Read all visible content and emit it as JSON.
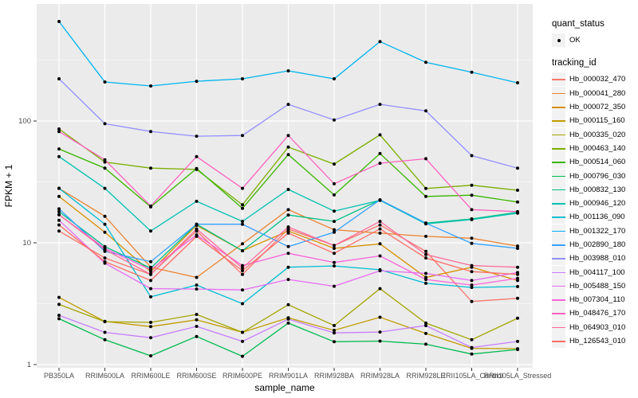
{
  "legend": {
    "quant_status_title": "quant_status",
    "ok_label": "OK",
    "tracking_title": "tracking_id"
  },
  "chart_data": {
    "type": "line",
    "title": "",
    "xlabel": "sample_name",
    "ylabel": "FPKM + 1",
    "y_scale": "log10",
    "ylim": [
      1,
      850
    ],
    "grid": true,
    "legend_position": "right",
    "panel_background": "#EBEBEB",
    "gridline_color": "#FFFFFF",
    "marker_color": "#000000",
    "marker_legend_label": "OK",
    "y_major_ticks": [
      1,
      10,
      100
    ],
    "y_minor_gridlines": [
      3.162,
      31.62,
      316.2
    ],
    "categories": [
      "PB350LA",
      "RRIM600LA",
      "RRIM600LE",
      "RRIM600SE",
      "RRIM600PE",
      "RRIM901LA",
      "RRIM928BA",
      "RRIM928LA",
      "RRIM928LE",
      "RRII105LA_Control",
      "RRII105LA_Stressed"
    ],
    "series": [
      {
        "name": "Hb_000032_470",
        "color": "#F8766D",
        "values": [
          12.5,
          7.5,
          5.5,
          12.5,
          5.5,
          13,
          9.5,
          14,
          8.5,
          3.3,
          3.5
        ]
      },
      {
        "name": "Hb_000041_280",
        "color": "#EA8331",
        "values": [
          28,
          16.5,
          6.3,
          5.2,
          9.8,
          18.7,
          12.8,
          12,
          11.3,
          10.9,
          9.4
        ]
      },
      {
        "name": "Hb_000072_350",
        "color": "#D89000",
        "values": [
          24,
          12.2,
          5.8,
          13.9,
          8.6,
          12.5,
          9.0,
          9.8,
          5.2,
          6.3,
          4.9
        ]
      },
      {
        "name": "Hb_000115_160",
        "color": "#C09B00",
        "values": [
          3.56,
          2.26,
          2.05,
          2.33,
          1.84,
          2.42,
          1.91,
          2.45,
          1.8,
          1.36,
          1.35
        ]
      },
      {
        "name": "Hb_000335_020",
        "color": "#A3A500",
        "values": [
          3.12,
          2.25,
          2.22,
          2.58,
          1.84,
          3.1,
          2.09,
          4.2,
          2.19,
          1.6,
          2.4
        ]
      },
      {
        "name": "Hb_000463_140",
        "color": "#7CAE00",
        "values": [
          86,
          46,
          41,
          40,
          20.5,
          61,
          44.3,
          77,
          27.9,
          29.7,
          27
        ]
      },
      {
        "name": "Hb_000514_060",
        "color": "#39B600",
        "values": [
          59,
          41,
          19.7,
          40.7,
          19.2,
          53,
          24.7,
          54,
          24,
          24.6,
          21.6
        ]
      },
      {
        "name": "Hb_000796_030",
        "color": "#00BB4E",
        "values": [
          2.38,
          1.6,
          1.18,
          1.7,
          1.17,
          2.19,
          1.54,
          1.56,
          1.47,
          1.22,
          1.33
        ]
      },
      {
        "name": "Hb_000832_130",
        "color": "#00C087",
        "values": [
          18,
          9.3,
          6.2,
          14.2,
          8.6,
          16.9,
          15,
          22.5,
          14.5,
          15.7,
          17.8
        ]
      },
      {
        "name": "Hb_000946_120",
        "color": "#00C0B2",
        "values": [
          51,
          28,
          12.5,
          21.9,
          15,
          27.4,
          18.2,
          22.3,
          14.3,
          15.5,
          17.5
        ]
      },
      {
        "name": "Hb_001136_090",
        "color": "#00BDD4",
        "values": [
          28,
          14.2,
          3.6,
          4.5,
          3.16,
          6.3,
          6.45,
          6.0,
          4.65,
          4.3,
          4.37
        ]
      },
      {
        "name": "Hb_001322_170",
        "color": "#00B4EF",
        "values": [
          656,
          209,
          194,
          212,
          222,
          258,
          222,
          449,
          303,
          251,
          206
        ]
      },
      {
        "name": "Hb_002890_180",
        "color": "#35A2FF",
        "values": [
          19,
          8.5,
          7.0,
          14.2,
          14.2,
          9.3,
          12.2,
          22.5,
          14.5,
          9.9,
          9.0
        ]
      },
      {
        "name": "Hb_003988_010",
        "color": "#9590FF",
        "values": [
          222,
          95,
          82,
          75,
          76,
          137,
          102,
          137,
          121,
          52,
          41
        ]
      },
      {
        "name": "Hb_004117_100",
        "color": "#C77CFF",
        "values": [
          2.54,
          1.84,
          1.66,
          2.06,
          1.55,
          2.36,
          1.82,
          1.85,
          2.09,
          1.38,
          1.55
        ]
      },
      {
        "name": "Hb_005488_150",
        "color": "#E76BF3",
        "values": [
          15.3,
          6.8,
          4.2,
          4.17,
          4.1,
          5.0,
          4.4,
          5.9,
          5.6,
          4.9,
          5.7
        ]
      },
      {
        "name": "Hb_007304_110",
        "color": "#FA62DB",
        "values": [
          17,
          9.0,
          6.0,
          11.6,
          6.5,
          8.2,
          6.9,
          7.8,
          5.0,
          4.5,
          5.1
        ]
      },
      {
        "name": "Hb_048476_170",
        "color": "#FF61BF",
        "values": [
          82,
          48,
          20,
          51,
          28,
          76,
          30.5,
          45,
          49,
          18.7,
          18
        ]
      },
      {
        "name": "Hb_064903_010",
        "color": "#FF6A98",
        "values": [
          17,
          8.8,
          5.5,
          13,
          6.2,
          13.5,
          9.5,
          15,
          8.0,
          6.5,
          6.3
        ]
      },
      {
        "name": "Hb_126543_010",
        "color": "#FF6C67",
        "values": [
          14,
          7.0,
          4.9,
          11.3,
          5.9,
          12,
          8.2,
          13,
          7.5,
          5.8,
          5.5
        ]
      }
    ]
  }
}
